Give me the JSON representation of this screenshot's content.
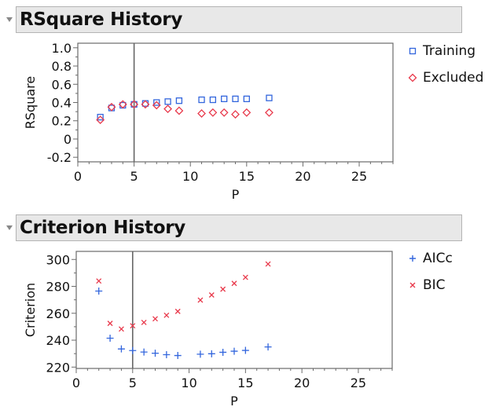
{
  "sections": [
    {
      "title": "RSquare History"
    },
    {
      "title": "Criterion History"
    }
  ],
  "chart_data": [
    {
      "type": "scatter",
      "title": "RSquare History",
      "xlabel": "P",
      "ylabel": "RSquare",
      "xlim": [
        0,
        28
      ],
      "ylim": [
        -0.25,
        1.05
      ],
      "xticks": [
        0,
        5,
        10,
        15,
        20,
        25
      ],
      "yticks": [
        -0.2,
        0,
        0.2,
        0.4,
        0.6,
        0.8,
        1.0
      ],
      "ytick_labels": [
        "-0.2",
        "0",
        "0.2",
        "0.4",
        "0.6",
        "0.8",
        "1.0"
      ],
      "vline": 5,
      "grid": false,
      "legend_position": "right",
      "series": [
        {
          "name": "Training",
          "marker": "square",
          "color": "#3366dd",
          "x": [
            2,
            3,
            4,
            5,
            6,
            7,
            8,
            9,
            11,
            12,
            13,
            14,
            15,
            17
          ],
          "y": [
            0.24,
            0.34,
            0.37,
            0.38,
            0.39,
            0.4,
            0.41,
            0.42,
            0.43,
            0.43,
            0.44,
            0.44,
            0.44,
            0.45
          ]
        },
        {
          "name": "Excluded",
          "marker": "diamond",
          "color": "#e8394b",
          "x": [
            2,
            3,
            4,
            5,
            6,
            7,
            8,
            9,
            11,
            12,
            13,
            14,
            15,
            17
          ],
          "y": [
            0.21,
            0.35,
            0.38,
            0.38,
            0.38,
            0.37,
            0.33,
            0.31,
            0.28,
            0.29,
            0.29,
            0.27,
            0.29,
            0.29
          ]
        }
      ]
    },
    {
      "type": "scatter",
      "title": "Criterion History",
      "xlabel": "P",
      "ylabel": "Criterion",
      "xlim": [
        0,
        28
      ],
      "ylim": [
        219,
        306
      ],
      "xticks": [
        0,
        5,
        10,
        15,
        20,
        25
      ],
      "yticks": [
        220,
        240,
        260,
        280,
        300
      ],
      "ytick_labels": [
        "220",
        "240",
        "260",
        "280",
        "300"
      ],
      "vline": 5,
      "grid": false,
      "legend_position": "right",
      "series": [
        {
          "name": "AICc",
          "marker": "plus",
          "color": "#3366dd",
          "x": [
            2,
            3,
            4,
            5,
            6,
            7,
            8,
            9,
            11,
            12,
            13,
            14,
            15,
            17
          ],
          "y": [
            276.5,
            241.5,
            233.5,
            232.3,
            231.2,
            230.3,
            229.2,
            228.6,
            229.6,
            229.9,
            231.0,
            231.8,
            232.4,
            235.0
          ]
        },
        {
          "name": "BIC",
          "marker": "x",
          "color": "#e8394b",
          "x": [
            2,
            3,
            4,
            5,
            6,
            7,
            8,
            9,
            11,
            12,
            13,
            14,
            15,
            17
          ],
          "y": [
            284.0,
            252.5,
            248.3,
            250.7,
            253.2,
            255.9,
            258.5,
            261.4,
            269.8,
            273.6,
            277.9,
            282.2,
            286.7,
            296.6
          ]
        }
      ]
    }
  ]
}
